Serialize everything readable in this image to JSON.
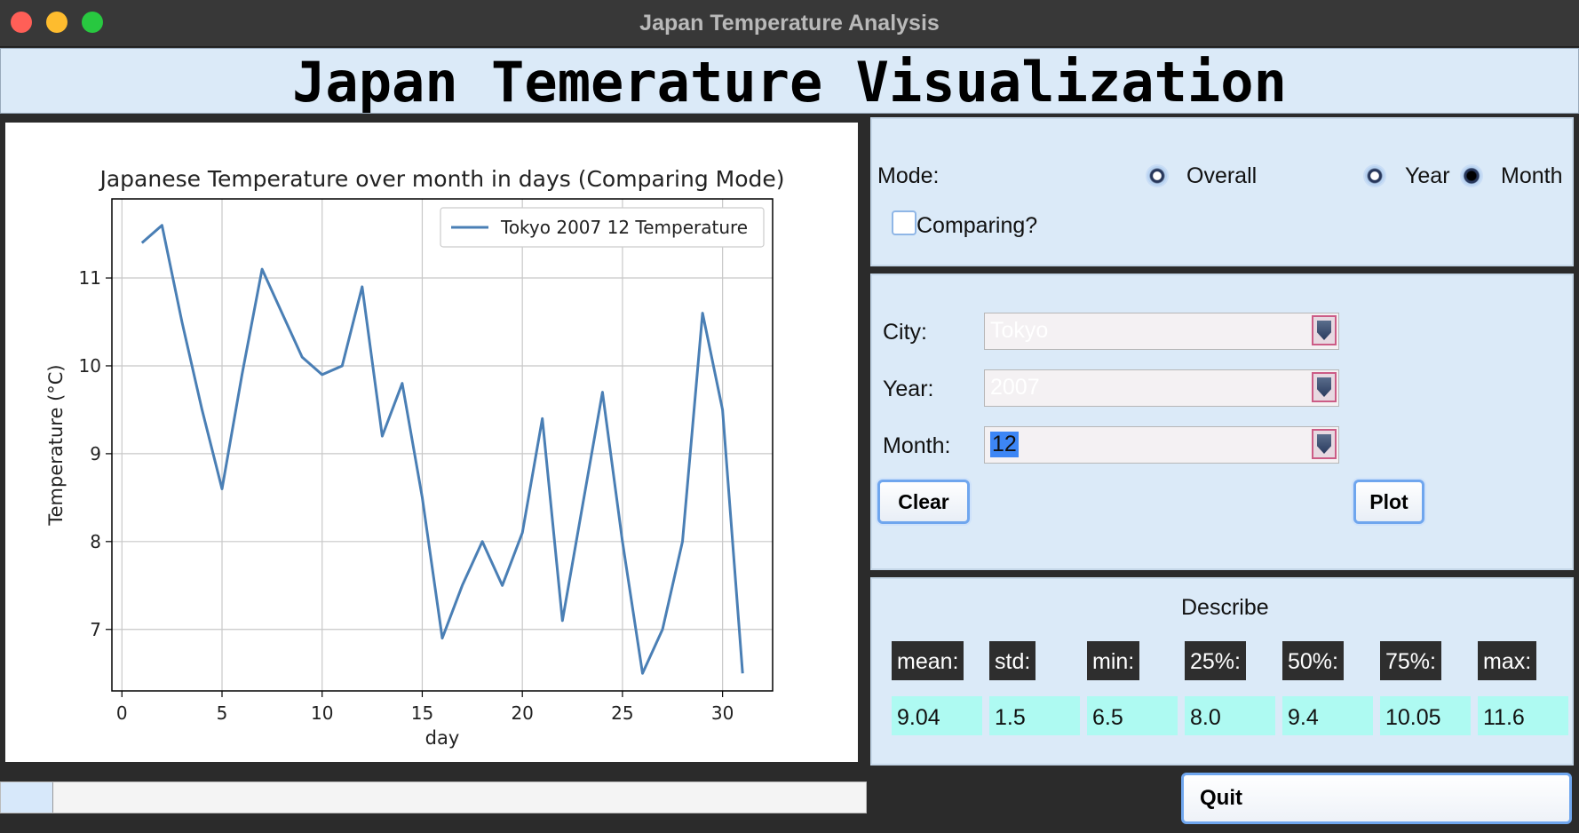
{
  "window": {
    "title": "Japan Temperature Analysis"
  },
  "header": {
    "title": "Japan Temerature Visualization"
  },
  "mode": {
    "label": "Mode:",
    "options": [
      "Overall",
      "Year",
      "Month"
    ],
    "selected": "Month",
    "comparing_label": "Comparing?",
    "comparing_checked": false
  },
  "selectors": {
    "city": {
      "label": "City:",
      "value": "Tokyo"
    },
    "year": {
      "label": "Year:",
      "value": "2007"
    },
    "month": {
      "label": "Month:",
      "value": "12"
    }
  },
  "buttons": {
    "clear": "Clear",
    "plot": "Plot",
    "quit": "Quit"
  },
  "describe": {
    "title": "Describe",
    "stats": [
      {
        "label": "mean:",
        "value": "9.04"
      },
      {
        "label": "std:",
        "value": "1.5"
      },
      {
        "label": "min:",
        "value": "6.5"
      },
      {
        "label": "25%:",
        "value": "8.0"
      },
      {
        "label": "50%:",
        "value": "9.4"
      },
      {
        "label": "75%:",
        "value": "10.05"
      },
      {
        "label": "max:",
        "value": "11.6"
      }
    ]
  },
  "progress": {
    "fraction": 0.06
  },
  "colors": {
    "line": "#4a7fb5",
    "stat_value_bg": "#aefaf2",
    "panel_bg": "#dbeaf8"
  },
  "chart_data": {
    "type": "line",
    "title": "Japanese Temperature over month in days (Comparing Mode)",
    "xlabel": "day",
    "ylabel": "Temperature (°C)",
    "xlim": [
      -0.5,
      32.5
    ],
    "ylim": [
      6.3,
      11.9
    ],
    "xticks": [
      0,
      5,
      10,
      15,
      20,
      25,
      30
    ],
    "yticks": [
      7,
      8,
      9,
      10,
      11
    ],
    "grid": true,
    "legend_position": "top-right",
    "series": [
      {
        "name": "Tokyo 2007 12 Temperature",
        "color": "#4a7fb5",
        "x": [
          1,
          2,
          3,
          4,
          5,
          6,
          7,
          8,
          9,
          10,
          11,
          12,
          13,
          14,
          15,
          16,
          17,
          18,
          19,
          20,
          21,
          22,
          23,
          24,
          25,
          26,
          27,
          28,
          29,
          30,
          31
        ],
        "y": [
          11.4,
          11.6,
          10.5,
          9.5,
          8.6,
          9.9,
          11.1,
          10.6,
          10.1,
          9.9,
          10.0,
          10.9,
          9.2,
          9.8,
          8.5,
          6.9,
          7.5,
          8.0,
          7.5,
          8.1,
          9.4,
          7.1,
          8.4,
          9.7,
          8.0,
          6.5,
          7.0,
          8.0,
          10.6,
          9.5,
          6.5
        ]
      }
    ]
  }
}
